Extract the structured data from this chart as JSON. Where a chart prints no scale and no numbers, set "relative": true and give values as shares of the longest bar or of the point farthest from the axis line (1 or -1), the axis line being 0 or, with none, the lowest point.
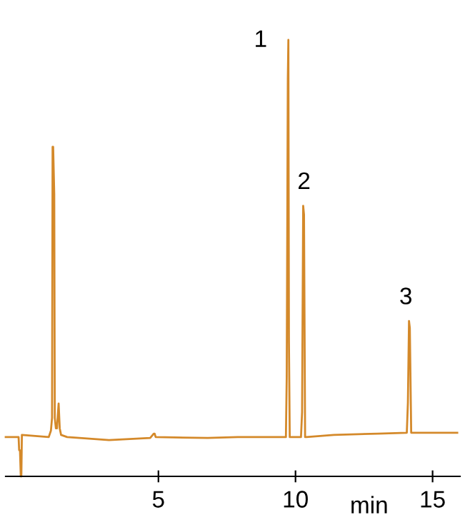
{
  "chart_data": {
    "type": "line",
    "relative": true,
    "xlabel": "min",
    "xlim": [
      -0.57,
      16
    ],
    "xticks": [
      5,
      10,
      15
    ],
    "grid": false,
    "legend": false,
    "marker": "none",
    "line_style": "solid",
    "series": [
      {
        "color": "#d4892a",
        "x": [
          -0.57,
          -0.1,
          -0.08,
          -0.05,
          -0.02,
          0.0,
          0.02,
          1.0,
          1.08,
          1.12,
          1.14,
          1.16,
          1.2,
          1.22,
          1.26,
          1.3,
          1.33,
          1.36,
          1.4,
          1.45,
          1.67,
          3.2,
          4.7,
          4.83,
          4.86,
          4.9,
          6.8,
          7.9,
          9.65,
          9.68,
          9.72,
          9.74,
          9.76,
          9.79,
          9.82,
          10.2,
          10.24,
          10.28,
          10.31,
          10.35,
          10.4,
          11.4,
          13.0,
          14.06,
          14.1,
          14.14,
          14.17,
          14.22,
          14.3,
          15.9
        ],
        "values": [
          0.09,
          0.09,
          0.06,
          0.06,
          0.0,
          0.0,
          0.095,
          0.09,
          0.105,
          0.134,
          0.755,
          0.755,
          0.647,
          0.134,
          0.11,
          0.11,
          0.14,
          0.167,
          0.11,
          0.095,
          0.09,
          0.083,
          0.088,
          0.098,
          0.098,
          0.09,
          0.088,
          0.09,
          0.09,
          0.23,
          0.91,
          1.0,
          0.31,
          0.09,
          0.09,
          0.09,
          0.147,
          0.62,
          0.6,
          0.09,
          0.09,
          0.095,
          0.098,
          0.1,
          0.17,
          0.356,
          0.34,
          0.1,
          0.1,
          0.1
        ]
      }
    ],
    "annotations": [
      {
        "text": "1",
        "x": 9.74,
        "y": 1.0
      },
      {
        "text": "2",
        "x": 10.31,
        "y": 0.62
      },
      {
        "text": "3",
        "x": 14.17,
        "y": 0.356
      }
    ]
  }
}
